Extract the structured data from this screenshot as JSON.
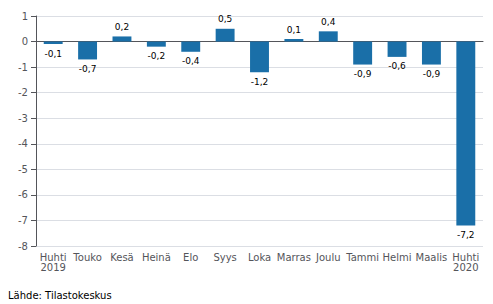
{
  "chart_data": {
    "type": "bar",
    "categories": [
      "Huhti\n2019",
      "Touko",
      "Kesä",
      "Heinä",
      "Elo",
      "Syys",
      "Loka",
      "Marras",
      "Joulu",
      "Tammi",
      "Helmi",
      "Maalis",
      "Huhti\n2020"
    ],
    "values": [
      -0.1,
      -0.7,
      0.2,
      -0.2,
      -0.4,
      0.5,
      -1.2,
      0.1,
      0.4,
      -0.9,
      -0.6,
      -0.9,
      -7.2
    ],
    "value_labels": [
      "-0,1",
      "-0,7",
      "0,2",
      "-0,2",
      "-0,4",
      "0,5",
      "-1,2",
      "0,1",
      "0,4",
      "-0,9",
      "-0,6",
      "-0,9",
      "-7,2"
    ],
    "data_labels": true,
    "color": "#1a6fa8",
    "ylim": [
      -8,
      1
    ],
    "yticks": [
      -8,
      -7,
      -6,
      -5,
      -4,
      -3,
      -2,
      -1,
      0,
      1
    ],
    "grid": true,
    "annotations": [
      "Lähde: Tilastokeskus"
    ]
  }
}
